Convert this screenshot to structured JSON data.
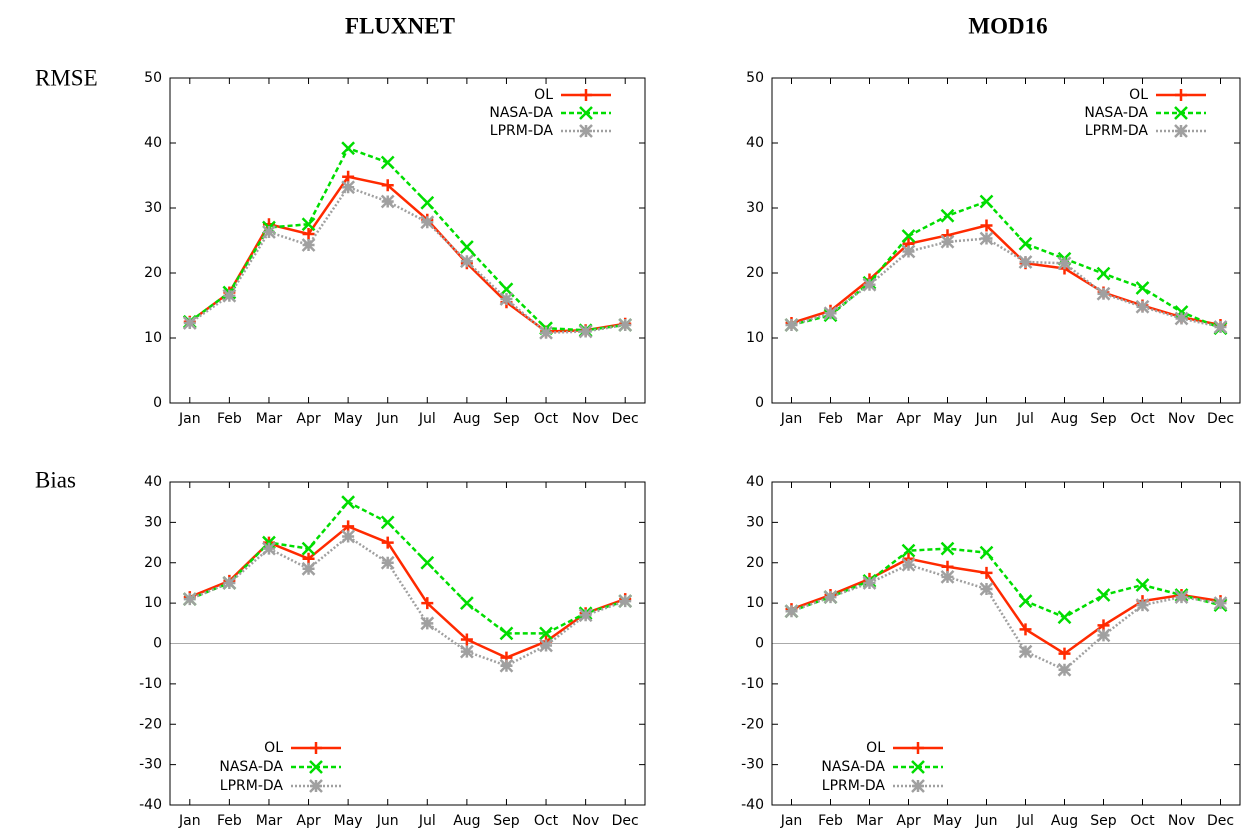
{
  "columns": [
    "FLUXNET",
    "MOD16"
  ],
  "rows": [
    "RMSE",
    "Bias"
  ],
  "chart_data": [
    {
      "type": "line",
      "legend": "upper right",
      "zero_line": false,
      "categories": [
        "Jan",
        "Feb",
        "Mar",
        "Apr",
        "May",
        "Jun",
        "Jul",
        "Aug",
        "Sep",
        "Oct",
        "Nov",
        "Dec"
      ],
      "ylim": [
        0,
        50
      ],
      "yticks": [
        0,
        10,
        20,
        30,
        40,
        50
      ],
      "series": [
        {
          "name": "OL",
          "color": "#ff2a00",
          "dash": "solid",
          "marker": "plus",
          "values": [
            12.5,
            17,
            27.5,
            26,
            34.8,
            33.5,
            28.2,
            21.5,
            15.5,
            11,
            11.2,
            12.2
          ]
        },
        {
          "name": "NASA-DA",
          "color": "#00dd00",
          "dash": "dashed",
          "marker": "cross",
          "values": [
            12.5,
            17,
            27,
            27.5,
            39.2,
            37,
            30.8,
            24,
            17.5,
            11.5,
            11.2,
            12
          ]
        },
        {
          "name": "LPRM-DA",
          "color": "#a0a0a0",
          "dash": "dotted",
          "marker": "star",
          "values": [
            12.3,
            16.5,
            26.3,
            24.3,
            33.2,
            31,
            27.8,
            21.8,
            16,
            10.8,
            11,
            12
          ]
        }
      ]
    },
    {
      "type": "line",
      "legend": "upper right",
      "zero_line": false,
      "categories": [
        "Jan",
        "Feb",
        "Mar",
        "Apr",
        "May",
        "Jun",
        "Jul",
        "Aug",
        "Sep",
        "Oct",
        "Nov",
        "Dec"
      ],
      "ylim": [
        0,
        50
      ],
      "yticks": [
        0,
        10,
        20,
        30,
        40,
        50
      ],
      "series": [
        {
          "name": "OL",
          "color": "#ff2a00",
          "dash": "solid",
          "marker": "plus",
          "values": [
            12.3,
            14.2,
            19,
            24.5,
            25.8,
            27.3,
            21.5,
            20.7,
            17,
            15,
            13.2,
            12
          ]
        },
        {
          "name": "NASA-DA",
          "color": "#00dd00",
          "dash": "dashed",
          "marker": "cross",
          "values": [
            12,
            13.5,
            18.5,
            25.7,
            28.8,
            31,
            24.5,
            22.2,
            19.9,
            17.7,
            14,
            11.5
          ]
        },
        {
          "name": "LPRM-DA",
          "color": "#a0a0a0",
          "dash": "dotted",
          "marker": "star",
          "values": [
            12,
            13.8,
            18.2,
            23.3,
            24.8,
            25.3,
            21.7,
            21.5,
            16.8,
            14.8,
            13,
            11.7
          ]
        }
      ]
    },
    {
      "type": "line",
      "legend": "lower left",
      "zero_line": true,
      "categories": [
        "Jan",
        "Feb",
        "Mar",
        "Apr",
        "May",
        "Jun",
        "Jul",
        "Aug",
        "Sep",
        "Oct",
        "Nov",
        "Dec"
      ],
      "ylim": [
        -40,
        40
      ],
      "yticks": [
        -40,
        -30,
        -20,
        -10,
        0,
        10,
        20,
        30,
        40
      ],
      "series": [
        {
          "name": "OL",
          "color": "#ff2a00",
          "dash": "solid",
          "marker": "plus",
          "values": [
            11.5,
            15.5,
            25,
            21,
            29,
            25,
            10,
            1,
            -3.5,
            0.5,
            7.5,
            11
          ]
        },
        {
          "name": "NASA-DA",
          "color": "#00dd00",
          "dash": "dashed",
          "marker": "cross",
          "values": [
            11,
            15,
            25,
            23.5,
            35,
            30,
            20,
            10,
            2.5,
            2.5,
            7.5,
            10.5
          ]
        },
        {
          "name": "LPRM-DA",
          "color": "#a0a0a0",
          "dash": "dotted",
          "marker": "star",
          "values": [
            11,
            15,
            23.5,
            18.5,
            26.5,
            20,
            5,
            -2,
            -5.5,
            -0.5,
            7,
            10.5
          ]
        }
      ]
    },
    {
      "type": "line",
      "legend": "lower left",
      "zero_line": true,
      "categories": [
        "Jan",
        "Feb",
        "Mar",
        "Apr",
        "May",
        "Jun",
        "Jul",
        "Aug",
        "Sep",
        "Oct",
        "Nov",
        "Dec"
      ],
      "ylim": [
        -40,
        40
      ],
      "yticks": [
        -40,
        -30,
        -20,
        -10,
        0,
        10,
        20,
        30,
        40
      ],
      "series": [
        {
          "name": "OL",
          "color": "#ff2a00",
          "dash": "solid",
          "marker": "plus",
          "values": [
            8.5,
            12,
            16,
            21,
            19,
            17.5,
            3.5,
            -2.5,
            4.5,
            10.5,
            12,
            10.5
          ]
        },
        {
          "name": "NASA-DA",
          "color": "#00dd00",
          "dash": "dashed",
          "marker": "cross",
          "values": [
            8,
            11.5,
            15.5,
            23,
            23.5,
            22.5,
            10.5,
            6.5,
            12,
            14.5,
            12,
            9.5
          ]
        },
        {
          "name": "LPRM-DA",
          "color": "#a0a0a0",
          "dash": "dotted",
          "marker": "star",
          "values": [
            8,
            11.5,
            15,
            19.5,
            16.5,
            13.5,
            -2,
            -6.5,
            2,
            9.5,
            11.5,
            10
          ]
        }
      ]
    }
  ]
}
